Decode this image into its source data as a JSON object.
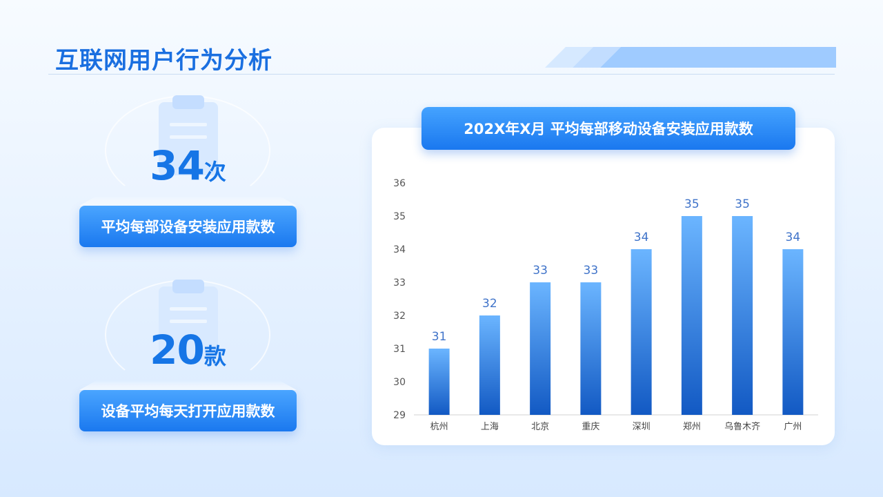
{
  "page": {
    "title": "互联网用户行为分析"
  },
  "stats": [
    {
      "value": "34",
      "unit": "次",
      "label": "平均每部设备安装应用款数"
    },
    {
      "value": "20",
      "unit": "款",
      "label": "设备平均每天打开应用款数"
    }
  ],
  "colors": {
    "accent": "#1a78ef",
    "bar_top": "#6bb5ff",
    "bar_bottom": "#1259c3",
    "value_label": "#3f73c9"
  },
  "chart_data": {
    "type": "bar",
    "title": "202X年X月 平均每部移动设备安装应用款数",
    "categories": [
      "杭州",
      "上海",
      "北京",
      "重庆",
      "深圳",
      "郑州",
      "乌鲁木齐",
      "广州"
    ],
    "values": [
      31,
      32,
      33,
      33,
      34,
      35,
      35,
      34
    ],
    "ylim": [
      29,
      36
    ],
    "yticks": [
      29,
      30,
      31,
      32,
      33,
      34,
      35,
      36
    ],
    "xlabel": "",
    "ylabel": "",
    "grid": false,
    "data_labels": true
  }
}
